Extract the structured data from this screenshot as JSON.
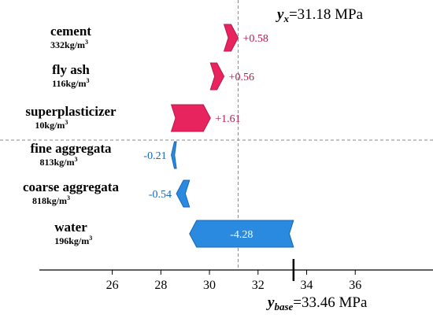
{
  "chart_data": {
    "type": "waterfall",
    "title": "",
    "xlabel": "",
    "ylabel": "",
    "xlim": [
      23,
      39.2
    ],
    "ticks": [
      26,
      28,
      30,
      32,
      34,
      36
    ],
    "base_value": 33.46,
    "output_value": 31.18,
    "annotations": {
      "output_label_var": "y",
      "output_label_sub": "x",
      "output_label_text": "=31.18 MPa",
      "base_label_var": "y",
      "base_label_sub": "base",
      "base_label_text": "=33.46 MPa"
    },
    "features": [
      {
        "name": "cement",
        "value": "332kg/m",
        "unit_sup": "3",
        "contribution": 0.58,
        "label": "+0.58",
        "start": 30.6,
        "end": 31.18
      },
      {
        "name": "fly ash",
        "value": "116kg/m",
        "unit_sup": "3",
        "contribution": 0.56,
        "label": "+0.56",
        "start": 30.04,
        "end": 30.6
      },
      {
        "name": "superplasticizer",
        "value": "10kg/m",
        "unit_sup": "3",
        "contribution": 1.61,
        "label": "+1.61",
        "start": 28.43,
        "end": 30.04
      },
      {
        "name": "fine aggregata",
        "value": "813kg/m",
        "unit_sup": "3",
        "contribution": -0.21,
        "label": "-0.21",
        "start": 28.43,
        "end": 28.64
      },
      {
        "name": "coarse aggregata",
        "value": "818kg/m",
        "unit_sup": "3",
        "contribution": -0.54,
        "label": "-0.54",
        "start": 28.64,
        "end": 29.18
      },
      {
        "name": "water",
        "value": "196kg/m",
        "unit_sup": "3",
        "contribution": -4.28,
        "label": "-4.28",
        "start": 29.18,
        "end": 33.46
      }
    ],
    "colors": {
      "positive": "#e8245f",
      "positive_dark": "#b81a4c",
      "negative": "#2a8ae0",
      "negative_dark": "#1667b8"
    }
  }
}
